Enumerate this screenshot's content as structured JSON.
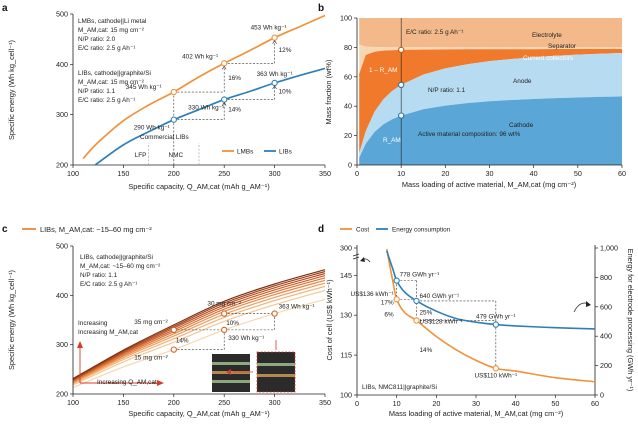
{
  "chart_data": [
    {
      "panel": "a",
      "type": "line",
      "xlabel": "Specific capacity, Q_AM,cat (mAh g_AM⁻¹)",
      "ylabel": "Specific energy (Wh kg_cell⁻¹)",
      "xlim": [
        100,
        350
      ],
      "ylim": [
        200,
        500
      ],
      "xticks": [
        100,
        150,
        200,
        250,
        300,
        350
      ],
      "yticks": [
        200,
        300,
        400,
        500
      ],
      "colors": {
        "LMBs": "#f0923a",
        "LIBs": "#2e7fb8"
      },
      "series": [
        {
          "name": "LMBs",
          "x": [
            110,
            125,
            150,
            175,
            200,
            225,
            250,
            275,
            300,
            325,
            350
          ],
          "y": [
            213,
            245,
            288,
            319,
            345,
            375,
            402,
            427,
            453,
            475,
            497
          ]
        },
        {
          "name": "LIBs",
          "x": [
            122,
            150,
            175,
            200,
            225,
            250,
            275,
            300,
            325,
            350
          ],
          "y": [
            200,
            240,
            266,
            290,
            310,
            330,
            346,
            363,
            378,
            392
          ]
        }
      ],
      "markers": [
        {
          "series": "LMBs",
          "x": 200,
          "y": 345,
          "label": "345 Wh kg⁻¹"
        },
        {
          "series": "LMBs",
          "x": 250,
          "y": 402,
          "label": "402 Wh kg⁻¹"
        },
        {
          "series": "LMBs",
          "x": 300,
          "y": 453,
          "label": "453 Wh kg⁻¹"
        },
        {
          "series": "LIBs",
          "x": 200,
          "y": 290,
          "label": "290 Wh kg⁻¹"
        },
        {
          "series": "LIBs",
          "x": 250,
          "y": 330,
          "label": "330 Wh kg⁻¹"
        },
        {
          "series": "LIBs",
          "x": 300,
          "y": 363,
          "label": "363 Wh kg⁻¹"
        }
      ],
      "percent_labels": [
        "16%",
        "12%",
        "14%",
        "10%"
      ],
      "text_lmb": [
        "LMBs, cathode||Li metal",
        "M_AM,cat: 15 mg cm⁻²",
        "N/P ratio: 2.0",
        "E/C ratio: 2.5 g Ah⁻¹"
      ],
      "text_lib": [
        "LIBs, cathode||graphite/Si",
        "M_AM,cat: 15 mg cm⁻²",
        "N/P ratio: 1.1",
        "E/C ratio: 2.5 g Ah⁻¹"
      ],
      "ref_lines": [
        {
          "x": 175,
          "label": "LFP"
        },
        {
          "x": 200,
          "label": "NMC"
        },
        {
          "x": 225
        }
      ],
      "commercial_label": "Commercial LIBs",
      "legend": [
        "LMBs",
        "LIBs"
      ]
    },
    {
      "panel": "b",
      "type": "area",
      "xlabel": "Mass loading of active material, M_AM,cat (mg cm⁻²)",
      "ylabel": "Mass fraction (wt%)",
      "xlim": [
        0,
        60
      ],
      "ylim": [
        0,
        100
      ],
      "xticks": [
        0,
        10,
        20,
        30,
        40,
        50,
        60
      ],
      "yticks": [
        0,
        20,
        40,
        60,
        80,
        100
      ],
      "x": [
        0.5,
        2,
        4,
        6,
        8,
        10,
        15,
        20,
        25,
        30,
        35,
        40,
        45,
        50,
        55,
        60
      ],
      "boundaries": {
        "cathode_top": [
          5,
          14.5,
          22.6,
          27.7,
          31.1,
          33.6,
          37.9,
          40.4,
          42.1,
          43.4,
          44.2,
          44.9,
          45.5,
          45.9,
          46.3,
          46.6
        ],
        "anode_top": [
          8,
          23.1,
          36.4,
          44.8,
          50.4,
          54.5,
          61.5,
          65.7,
          68.6,
          70.7,
          72.1,
          73.3,
          74.3,
          75.1,
          75.7,
          76.2
        ],
        "collector_top": [
          62,
          74.8,
          77.1,
          77.8,
          78.1,
          78.3,
          78.5,
          78.6,
          78.7,
          78.8,
          78.8,
          78.8,
          78.9,
          78.9,
          78.9,
          78.9
        ],
        "separator_top": [
          82,
          80.5,
          80.3,
          80.2,
          80.2,
          80.2,
          80.1,
          80.1,
          80.1,
          80.1,
          80.1,
          80.1,
          80.1,
          80.1,
          80.1,
          80.1
        ]
      },
      "colors": {
        "cathode": "#5aa6d6",
        "anode": "#b7dcf2",
        "collector": "#f0792b",
        "separator": "#f6d7b3",
        "electrolyte": "#f4b98a"
      },
      "labels": {
        "ec_ratio": "E/C ratio: 2.5 g Ah⁻¹",
        "electrolyte": "Electrolyte",
        "separator": "Separator",
        "collectors": "Current collectors",
        "anode": "Anode",
        "np_ratio": "N/P ratio: 1.1",
        "cathode": "Cathode",
        "composition": "Active material composition: 96 wt%",
        "one_minus_ram": "1 – R_AM",
        "ram": "R_AM"
      },
      "marker_x": 10
    },
    {
      "panel": "c",
      "type": "line",
      "title": "LIBs, M_AM,cat: ~15–60 mg cm⁻²",
      "xlabel": "Specific capacity, Q_AM,cat (mAh g_AM⁻¹)",
      "ylabel": "Specific energy (Wh kg_cell⁻¹)",
      "xlim": [
        100,
        350
      ],
      "ylim": [
        200,
        500
      ],
      "xticks": [
        100,
        150,
        200,
        250,
        300,
        350
      ],
      "yticks": [
        200,
        300,
        400,
        500
      ],
      "loadings": [
        15,
        20,
        25,
        30,
        35,
        40,
        45,
        50,
        55,
        60
      ],
      "series_ref": {
        "x": [
          100,
          150,
          200,
          250,
          300,
          350
        ],
        "y_15": [
          213,
          255,
          290,
          330,
          363,
          392
        ],
        "y_60": [
          231,
          289,
          340,
          388,
          423,
          452
        ]
      },
      "markers": [
        {
          "x": 200,
          "y": 290,
          "label": "15 mg cm⁻²"
        },
        {
          "x": 200,
          "y": 330,
          "label": "35 mg cm⁻²"
        },
        {
          "x": 250,
          "y": 330,
          "label": "330 Wh kg⁻¹"
        },
        {
          "x": 250,
          "y": 363,
          "label": "30 mg cm⁻²"
        },
        {
          "x": 300,
          "y": 363,
          "label": "363 Wh kg⁻¹"
        }
      ],
      "percent_labels": [
        "14%",
        "10%"
      ],
      "text_block": [
        "LIBs, cathode||graphite/Si",
        "M_AM,cat: ~15–60 mg cm⁻²",
        "N/P ratio: 1.1",
        "E/C ratio: 2.5 g Ah⁻¹"
      ],
      "arrow_labels": {
        "increasing_loading": "Increasing M_AM,cat",
        "increasing_capacity": "Increasing Q_AM,cat"
      }
    },
    {
      "panel": "d",
      "type": "line",
      "xlabel": "Mass loading of active material, M_AM,cat (mg cm⁻²)",
      "ylabel_left": "Cost of cell (US$ kWh⁻¹)",
      "ylabel_right": "Energy for electrode processing (GWh yr⁻¹)",
      "xlim": [
        0,
        60
      ],
      "xticks": [
        0,
        10,
        20,
        30,
        40,
        50,
        60
      ],
      "left_ticks": [
        "100",
        "115",
        "130",
        "145",
        "300"
      ],
      "right_ticks": [
        "0",
        "200",
        "400",
        "600",
        "800",
        "1,000"
      ],
      "colors": {
        "cost": "#f0923a",
        "energy": "#2e7fb8"
      },
      "series": [
        {
          "name": "Cost",
          "axis": "left",
          "x": [
            7.5,
            9,
            10,
            12,
            15,
            20,
            25,
            30,
            35,
            40,
            50,
            60
          ],
          "y": [
            165,
            143,
            136,
            131,
            128,
            122,
            117,
            113,
            110,
            109,
            106.5,
            105
          ]
        },
        {
          "name": "Energy consumption",
          "axis": "right",
          "x": [
            7.5,
            9,
            10,
            12,
            15,
            20,
            25,
            30,
            35,
            40,
            50,
            60
          ],
          "y": [
            980,
            860,
            778,
            700,
            640,
            570,
            520,
            495,
            479,
            470,
            458,
            450
          ]
        }
      ],
      "markers": [
        {
          "series": "Energy consumption",
          "x": 10,
          "label": "778 GWh yr⁻¹"
        },
        {
          "series": "Energy consumption",
          "x": 15,
          "label": "640 GWh yr⁻¹"
        },
        {
          "series": "Energy consumption",
          "x": 35,
          "label": "479 GWh yr⁻¹"
        },
        {
          "series": "Cost",
          "x": 10,
          "label": "US$136 kWh⁻¹"
        },
        {
          "series": "Cost",
          "x": 15,
          "label": "US$128 kWh⁻¹"
        },
        {
          "series": "Cost",
          "x": 35,
          "label": "US$110 kWh⁻¹"
        }
      ],
      "percent_labels": [
        "17%",
        "6%",
        "25%",
        "14%"
      ],
      "legend": [
        "Cost",
        "Energy consumption"
      ],
      "note": "LIBs, NMC811||graphite/Si"
    }
  ],
  "panel_letters": [
    "a",
    "b",
    "c",
    "d"
  ]
}
